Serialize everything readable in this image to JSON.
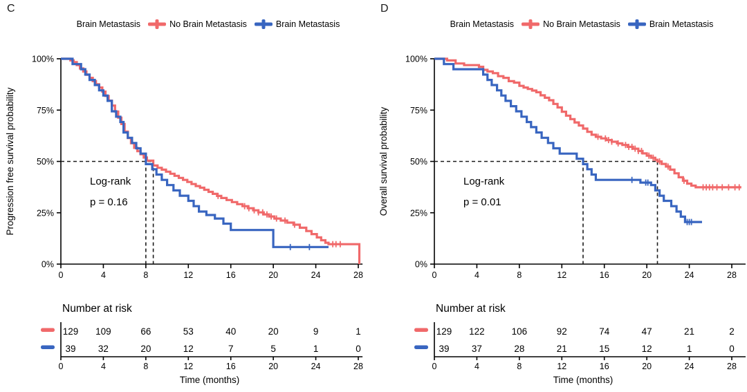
{
  "figure": {
    "background": "#ffffff",
    "axis_color": "#000000",
    "dash_color": "#1a1a1a"
  },
  "chart_data": [
    {
      "type": "line",
      "subtype": "kaplan-meier",
      "panel_label": "C",
      "legend": {
        "title": "Brain Metastasis",
        "entries": [
          {
            "label": "No Brain Metastasis",
            "color": "#F0696A"
          },
          {
            "label": "Brain Metastasis",
            "color": "#3865C0"
          }
        ]
      },
      "ylabel": "Progression free survival probability",
      "xlabel": "Time (months)",
      "xlim": [
        0,
        28
      ],
      "xticks": [
        0,
        4,
        8,
        12,
        16,
        20,
        24,
        28
      ],
      "ylim": [
        0,
        100
      ],
      "yticks": [
        0,
        25,
        50,
        75,
        100
      ],
      "ytick_suffix": "%",
      "x_axis_end": 28.4,
      "annotation": {
        "line1": "Log-rank",
        "line2": "p = 0.16"
      },
      "medians_months": [
        8.7,
        8.0
      ],
      "series": [
        {
          "name": "No Brain Metastasis",
          "color": "#F0696A",
          "points": [
            [
              0,
              100
            ],
            [
              0.9,
              99.2
            ],
            [
              1.2,
              98.4
            ],
            [
              1.5,
              96.9
            ],
            [
              1.8,
              95.3
            ],
            [
              2.1,
              93.8
            ],
            [
              2.4,
              92.2
            ],
            [
              2.7,
              90.7
            ],
            [
              3.0,
              89.1
            ],
            [
              3.3,
              87.6
            ],
            [
              3.6,
              86.0
            ],
            [
              3.9,
              84.0
            ],
            [
              4.2,
              81.9
            ],
            [
              4.5,
              79.6
            ],
            [
              4.8,
              77.2
            ],
            [
              5.1,
              74.3
            ],
            [
              5.4,
              71.3
            ],
            [
              5.7,
              68.2
            ],
            [
              6.0,
              64.5
            ],
            [
              6.3,
              61.4
            ],
            [
              6.6,
              58.9
            ],
            [
              6.9,
              56.6
            ],
            [
              7.2,
              55.0
            ],
            [
              7.5,
              53.5
            ],
            [
              7.8,
              51.9
            ],
            [
              8.1,
              50.4
            ],
            [
              8.7,
              48.0
            ],
            [
              9.1,
              46.9
            ],
            [
              9.5,
              46.0
            ],
            [
              9.9,
              45.0
            ],
            [
              10.3,
              44.0
            ],
            [
              10.7,
              43.0
            ],
            [
              11.1,
              42.0
            ],
            [
              11.5,
              41.0
            ],
            [
              11.9,
              40.0
            ],
            [
              12.3,
              39.0
            ],
            [
              12.7,
              38.0
            ],
            [
              13.1,
              37.2
            ],
            [
              13.5,
              36.2
            ],
            [
              13.9,
              35.2
            ],
            [
              14.3,
              34.2
            ],
            [
              14.7,
              33.2
            ],
            [
              15.1,
              32.2
            ],
            [
              15.6,
              31.2
            ],
            [
              16.1,
              30.2
            ],
            [
              16.6,
              29.2
            ],
            [
              17.1,
              28.2
            ],
            [
              17.6,
              27.2
            ],
            [
              18.1,
              26.2
            ],
            [
              18.6,
              25.2
            ],
            [
              19.1,
              24.2
            ],
            [
              19.6,
              23.2
            ],
            [
              20.1,
              22.2
            ],
            [
              20.7,
              21.2
            ],
            [
              21.3,
              20.2
            ],
            [
              21.9,
              19.2
            ],
            [
              22.5,
              17.7
            ],
            [
              23.1,
              16.1
            ],
            [
              23.6,
              14.6
            ],
            [
              24.1,
              13.0
            ],
            [
              24.5,
              11.6
            ],
            [
              24.9,
              10.4
            ],
            [
              25.2,
              9.7
            ],
            [
              28.1,
              9.7
            ],
            [
              28.1,
              0
            ]
          ],
          "censors": [
            14.8,
            17.3,
            17.7,
            18.2,
            18.6,
            19.0,
            19.4,
            19.8,
            20.3,
            21.1,
            22.0,
            25.6,
            25.9,
            26.3
          ]
        },
        {
          "name": "Brain Metastasis",
          "color": "#3865C0",
          "points": [
            [
              0,
              100
            ],
            [
              1.1,
              97.4
            ],
            [
              1.9,
              94.9
            ],
            [
              2.3,
              92.3
            ],
            [
              2.7,
              89.7
            ],
            [
              3.2,
              87.2
            ],
            [
              3.6,
              84.6
            ],
            [
              4.0,
              82.1
            ],
            [
              4.4,
              79.5
            ],
            [
              4.8,
              74.4
            ],
            [
              5.2,
              71.8
            ],
            [
              5.6,
              69.2
            ],
            [
              5.9,
              64.1
            ],
            [
              6.3,
              61.5
            ],
            [
              6.7,
              59.0
            ],
            [
              7.1,
              56.4
            ],
            [
              7.5,
              53.8
            ],
            [
              8.0,
              48.7
            ],
            [
              8.6,
              46.2
            ],
            [
              9.0,
              43.6
            ],
            [
              9.5,
              41.0
            ],
            [
              10.0,
              38.5
            ],
            [
              10.6,
              35.9
            ],
            [
              11.2,
              33.3
            ],
            [
              12.0,
              30.8
            ],
            [
              12.5,
              28.2
            ],
            [
              13.0,
              25.6
            ],
            [
              13.7,
              23.9
            ],
            [
              14.5,
              22.2
            ],
            [
              15.3,
              19.7
            ],
            [
              16.0,
              16.6
            ],
            [
              20.0,
              8.3
            ],
            [
              25.2,
              8.3
            ]
          ],
          "censors": [
            21.6,
            23.4
          ]
        }
      ],
      "risk_table": {
        "title": "Number at risk",
        "times": [
          0,
          4,
          8,
          12,
          16,
          20,
          24,
          28
        ],
        "rows": [
          {
            "name": "No Brain Metastasis",
            "color": "#F0696A",
            "values": [
              129,
              109,
              66,
              53,
              40,
              20,
              9,
              1
            ]
          },
          {
            "name": "Brain Metastasis",
            "color": "#3865C0",
            "values": [
              39,
              32,
              20,
              12,
              7,
              5,
              1,
              0
            ]
          }
        ]
      }
    },
    {
      "type": "line",
      "subtype": "kaplan-meier",
      "panel_label": "D",
      "legend": {
        "title": "Brain Metastasis",
        "entries": [
          {
            "label": "No Brain Metastasis",
            "color": "#F0696A"
          },
          {
            "label": "Brain Metastasis",
            "color": "#3865C0"
          }
        ]
      },
      "ylabel": "Overall survival probability",
      "xlabel": "Time (months)",
      "xlim": [
        0,
        28
      ],
      "xticks": [
        0,
        4,
        8,
        12,
        16,
        20,
        24,
        28
      ],
      "ylim": [
        0,
        100
      ],
      "yticks": [
        0,
        25,
        50,
        75,
        100
      ],
      "ytick_suffix": "%",
      "x_axis_end": 29.3,
      "annotation": {
        "line1": "Log-rank",
        "line2": "p = 0.01"
      },
      "medians_months": [
        21.0,
        14.0
      ],
      "series": [
        {
          "name": "No Brain Metastasis",
          "color": "#F0696A",
          "points": [
            [
              0,
              100
            ],
            [
              1.2,
              99.2
            ],
            [
              2.0,
              97.7
            ],
            [
              2.8,
              96.9
            ],
            [
              4.2,
              96.1
            ],
            [
              4.6,
              94.6
            ],
            [
              5.0,
              93.8
            ],
            [
              5.5,
              93.0
            ],
            [
              6.0,
              91.5
            ],
            [
              6.5,
              90.7
            ],
            [
              7.0,
              89.1
            ],
            [
              7.5,
              88.4
            ],
            [
              8.0,
              86.8
            ],
            [
              8.4,
              86.0
            ],
            [
              8.8,
              85.3
            ],
            [
              9.2,
              84.5
            ],
            [
              9.6,
              83.7
            ],
            [
              10.0,
              82.2
            ],
            [
              10.4,
              81.0
            ],
            [
              10.8,
              79.8
            ],
            [
              11.2,
              78.0
            ],
            [
              11.6,
              76.3
            ],
            [
              12.0,
              74.2
            ],
            [
              12.4,
              72.3
            ],
            [
              12.8,
              70.6
            ],
            [
              13.2,
              69.0
            ],
            [
              13.6,
              67.5
            ],
            [
              14.0,
              66.0
            ],
            [
              14.4,
              64.4
            ],
            [
              14.8,
              63.0
            ],
            [
              15.2,
              62.0
            ],
            [
              15.7,
              61.2
            ],
            [
              16.2,
              60.4
            ],
            [
              16.7,
              59.6
            ],
            [
              17.2,
              58.8
            ],
            [
              17.7,
              58.0
            ],
            [
              18.2,
              57.1
            ],
            [
              18.7,
              56.2
            ],
            [
              19.2,
              55.1
            ],
            [
              19.6,
              53.9
            ],
            [
              20.0,
              52.8
            ],
            [
              20.4,
              51.8
            ],
            [
              20.8,
              50.8
            ],
            [
              21.0,
              50.0
            ],
            [
              21.4,
              48.8
            ],
            [
              21.8,
              47.5
            ],
            [
              22.2,
              46.0
            ],
            [
              22.6,
              44.2
            ],
            [
              23.0,
              42.3
            ],
            [
              23.4,
              40.6
            ],
            [
              23.8,
              39.2
            ],
            [
              24.2,
              38.2
            ],
            [
              24.6,
              37.4
            ],
            [
              28.9,
              37.4
            ]
          ],
          "censors": [
            15.4,
            16.1,
            16.4,
            16.7,
            17.3,
            18.0,
            18.3,
            18.6,
            18.9,
            19.2,
            19.5,
            20.2,
            20.6,
            21.2,
            22.0,
            23.5,
            25.3,
            25.6,
            25.9,
            26.2,
            26.6,
            27.1,
            27.7,
            28.3,
            28.7
          ]
        },
        {
          "name": "Brain Metastasis",
          "color": "#3865C0",
          "points": [
            [
              0,
              100
            ],
            [
              0.9,
              97.4
            ],
            [
              1.8,
              94.9
            ],
            [
              4.6,
              92.3
            ],
            [
              5.0,
              89.7
            ],
            [
              5.4,
              87.2
            ],
            [
              5.9,
              84.6
            ],
            [
              6.3,
              82.1
            ],
            [
              6.7,
              79.5
            ],
            [
              7.2,
              76.9
            ],
            [
              7.7,
              74.4
            ],
            [
              8.2,
              71.8
            ],
            [
              8.7,
              69.2
            ],
            [
              9.1,
              66.7
            ],
            [
              9.6,
              64.1
            ],
            [
              10.1,
              61.5
            ],
            [
              10.7,
              59.0
            ],
            [
              11.2,
              56.4
            ],
            [
              11.8,
              53.8
            ],
            [
              13.4,
              51.3
            ],
            [
              14.0,
              48.7
            ],
            [
              14.4,
              46.2
            ],
            [
              14.8,
              43.6
            ],
            [
              15.2,
              41.0
            ],
            [
              19.4,
              39.7
            ],
            [
              20.4,
              38.5
            ],
            [
              20.8,
              35.9
            ],
            [
              21.2,
              33.3
            ],
            [
              21.6,
              30.8
            ],
            [
              22.3,
              28.2
            ],
            [
              22.8,
              25.6
            ],
            [
              23.2,
              23.1
            ],
            [
              23.6,
              20.5
            ],
            [
              25.2,
              20.5
            ]
          ],
          "censors": [
            18.6,
            19.9,
            20.1,
            23.8,
            24.0,
            24.2
          ]
        }
      ],
      "risk_table": {
        "title": "Number at risk",
        "times": [
          0,
          4,
          8,
          12,
          16,
          20,
          24,
          28
        ],
        "rows": [
          {
            "name": "No Brain Metastasis",
            "color": "#F0696A",
            "values": [
              129,
              122,
              106,
              92,
              74,
              47,
              21,
              2
            ]
          },
          {
            "name": "Brain Metastasis",
            "color": "#3865C0",
            "values": [
              39,
              37,
              28,
              21,
              15,
              12,
              1,
              0
            ]
          }
        ]
      }
    }
  ]
}
